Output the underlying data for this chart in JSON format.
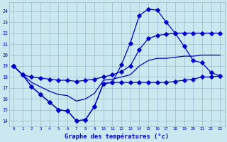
{
  "xlabel": "Graphe des températures (°c)",
  "background_color": "#cbe8f0",
  "grid_color": "#99bbcc",
  "line_color": "#0000cc",
  "hours": [
    0,
    1,
    2,
    3,
    4,
    5,
    6,
    7,
    8,
    9,
    10,
    11,
    12,
    13,
    14,
    15,
    16,
    17,
    18,
    19,
    20,
    21,
    22,
    23
  ],
  "temp_line": [
    19.0,
    18.2,
    17.1,
    16.4,
    15.7,
    15.0,
    14.9,
    14.0,
    14.1,
    15.3,
    17.4,
    17.5,
    19.1,
    21.1,
    23.6,
    24.2,
    24.1,
    23.0,
    22.0,
    20.8,
    19.5,
    19.3,
    18.4,
    18.1
  ],
  "max_line": [
    19.0,
    18.2,
    18.0,
    17.9,
    17.8,
    17.7,
    17.7,
    17.6,
    17.7,
    17.8,
    18.0,
    18.2,
    18.5,
    19.0,
    20.5,
    21.5,
    21.8,
    21.9,
    22.0,
    22.0,
    22.0,
    22.0,
    22.0,
    22.0
  ],
  "min_line": [
    19.0,
    18.2,
    17.1,
    16.4,
    15.7,
    15.0,
    14.9,
    14.0,
    14.1,
    15.3,
    17.4,
    17.5,
    17.5,
    17.5,
    17.5,
    17.5,
    17.5,
    17.5,
    17.6,
    17.7,
    17.8,
    18.0,
    18.0,
    18.1
  ],
  "mean_line": [
    19.0,
    18.2,
    17.5,
    17.1,
    16.7,
    16.4,
    16.3,
    15.8,
    16.0,
    16.5,
    17.7,
    17.8,
    18.0,
    18.2,
    19.0,
    19.5,
    19.7,
    19.7,
    19.8,
    19.9,
    19.9,
    20.0,
    20.0,
    20.0
  ],
  "ylim": [
    13.5,
    24.8
  ],
  "yticks": [
    14,
    15,
    16,
    17,
    18,
    19,
    20,
    21,
    22,
    23,
    24
  ],
  "figsize": [
    3.2,
    2.0
  ],
  "dpi": 100
}
